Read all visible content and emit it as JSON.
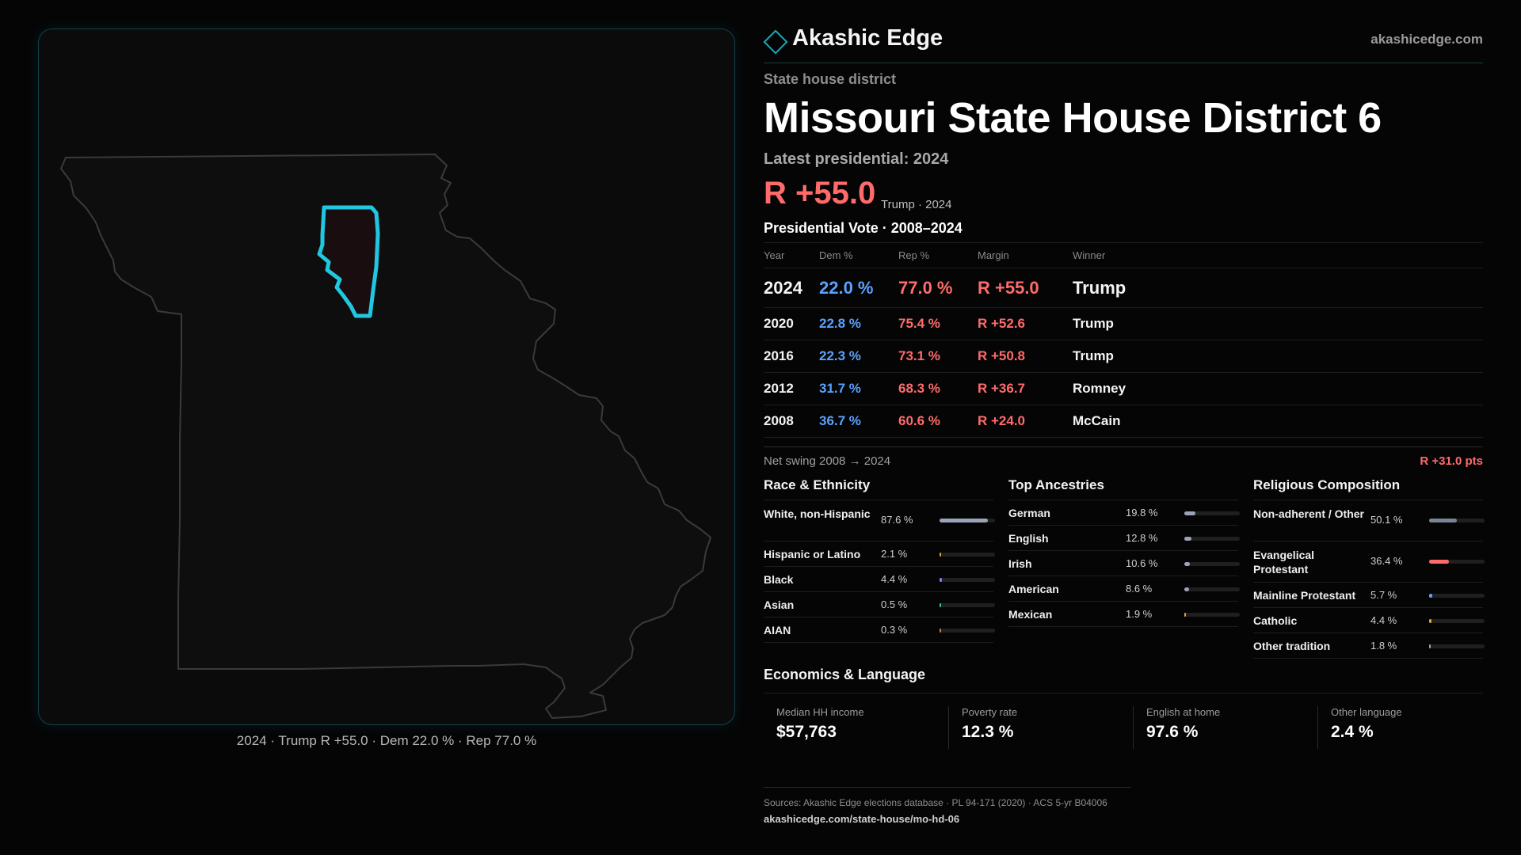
{
  "brand": {
    "name": "Akashic Edge",
    "url": "akashicedge.com",
    "logo_icon": "diamond-outline-icon"
  },
  "map": {
    "caption": "2024 · Trump R +55.0 · Dem 22.0 % · Rep 77.0 %",
    "state_outline_color": "#3a3a3a",
    "district_highlight_color": "#1fc8e0"
  },
  "district": {
    "kicker": "State house district",
    "title": "Missouri State House District 6",
    "latest_label": "Latest presidential: 2024",
    "latest_margin": "R +55.0",
    "latest_sub": "Trump · 2024"
  },
  "presidential": {
    "title": "Presidential Vote · 2008–2024",
    "headers": {
      "year": "Year",
      "dem": "Dem %",
      "rep": "Rep %",
      "margin": "Margin",
      "winner": "Winner"
    },
    "rows": [
      {
        "year": "2024",
        "dem": "22.0 %",
        "rep": "77.0 %",
        "margin": "R +55.0",
        "winner": "Trump"
      },
      {
        "year": "2020",
        "dem": "22.8 %",
        "rep": "75.4 %",
        "margin": "R +52.6",
        "winner": "Trump"
      },
      {
        "year": "2016",
        "dem": "22.3 %",
        "rep": "73.1 %",
        "margin": "R +50.8",
        "winner": "Trump"
      },
      {
        "year": "2012",
        "dem": "31.7 %",
        "rep": "68.3 %",
        "margin": "R +36.7",
        "winner": "Romney"
      },
      {
        "year": "2008",
        "dem": "36.7 %",
        "rep": "60.6 %",
        "margin": "R +24.0",
        "winner": "McCain"
      }
    ],
    "swing_label": "Net swing 2008 → 2024",
    "swing_value": "R +31.0 pts"
  },
  "race": {
    "title": "Race & Ethnicity",
    "items": [
      {
        "label": "White, non-Hispanic",
        "value": "87.6 %",
        "fraction": 0.876,
        "color": "#9aa4b6"
      },
      {
        "label": "Hispanic or Latino",
        "value": "2.1 %",
        "fraction": 0.021,
        "color": "#e0a040"
      },
      {
        "label": "Black",
        "value": "4.4 %",
        "fraction": 0.044,
        "color": "#8a7cff"
      },
      {
        "label": "Asian",
        "value": "0.5 %",
        "fraction": 0.005,
        "color": "#40c0a0"
      },
      {
        "label": "AIAN",
        "value": "0.3 %",
        "fraction": 0.003,
        "color": "#c08060"
      }
    ]
  },
  "ancestry": {
    "title": "Top Ancestries",
    "items": [
      {
        "label": "German",
        "value": "19.8 %",
        "fraction": 0.198,
        "color": "#9aa4b6"
      },
      {
        "label": "English",
        "value": "12.8 %",
        "fraction": 0.128,
        "color": "#9aa4b6"
      },
      {
        "label": "Irish",
        "value": "10.6 %",
        "fraction": 0.106,
        "color": "#9aa4b6"
      },
      {
        "label": "American",
        "value": "8.6 %",
        "fraction": 0.086,
        "color": "#9aa4b6"
      },
      {
        "label": "Mexican",
        "value": "1.9 %",
        "fraction": 0.019,
        "color": "#e0a040"
      }
    ]
  },
  "religion": {
    "title": "Religious Composition",
    "items": [
      {
        "label": "Non-adherent / Other",
        "value": "50.1 %",
        "fraction": 0.501,
        "color": "#7a8494"
      },
      {
        "label": "Evangelical Protestant",
        "value": "36.4 %",
        "fraction": 0.364,
        "color": "#ff6b6b"
      },
      {
        "label": "Mainline Protestant",
        "value": "5.7 %",
        "fraction": 0.057,
        "color": "#5aa2ff"
      },
      {
        "label": "Catholic",
        "value": "4.4 %",
        "fraction": 0.044,
        "color": "#e0a040"
      },
      {
        "label": "Other tradition",
        "value": "1.8 %",
        "fraction": 0.018,
        "color": "#9aa4b6"
      }
    ]
  },
  "economics": {
    "title": "Economics & Language",
    "items": [
      {
        "label": "Median HH income",
        "value": "$57,763"
      },
      {
        "label": "Poverty rate",
        "value": "12.3 %"
      },
      {
        "label": "English at home",
        "value": "97.6 %"
      },
      {
        "label": "Other language",
        "value": "2.4 %"
      }
    ]
  },
  "sources": {
    "text": "Sources: Akashic Edge elections database · PL 94-171 (2020) · ACS 5-yr B04006",
    "url": "akashicedge.com/state-house/mo-hd-06"
  }
}
